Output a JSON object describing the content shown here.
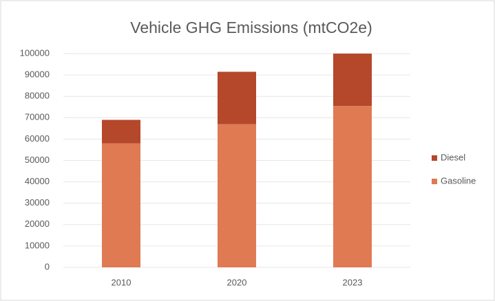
{
  "chart_data": {
    "type": "stacked_bar",
    "title": "Vehicle GHG Emissions (mtCO2e)",
    "categories": [
      "2010",
      "2020",
      "2023"
    ],
    "series": [
      {
        "name": "Gasoline",
        "color": "#df7a53",
        "values": [
          58000,
          67000,
          75500
        ]
      },
      {
        "name": "Diesel",
        "color": "#b5472a",
        "values": [
          11000,
          24500,
          24500
        ]
      }
    ],
    "ylim": [
      0,
      100000
    ],
    "yticks": [
      0,
      10000,
      20000,
      30000,
      40000,
      50000,
      60000,
      70000,
      80000,
      90000,
      100000
    ],
    "grid": true,
    "legend": "right"
  }
}
